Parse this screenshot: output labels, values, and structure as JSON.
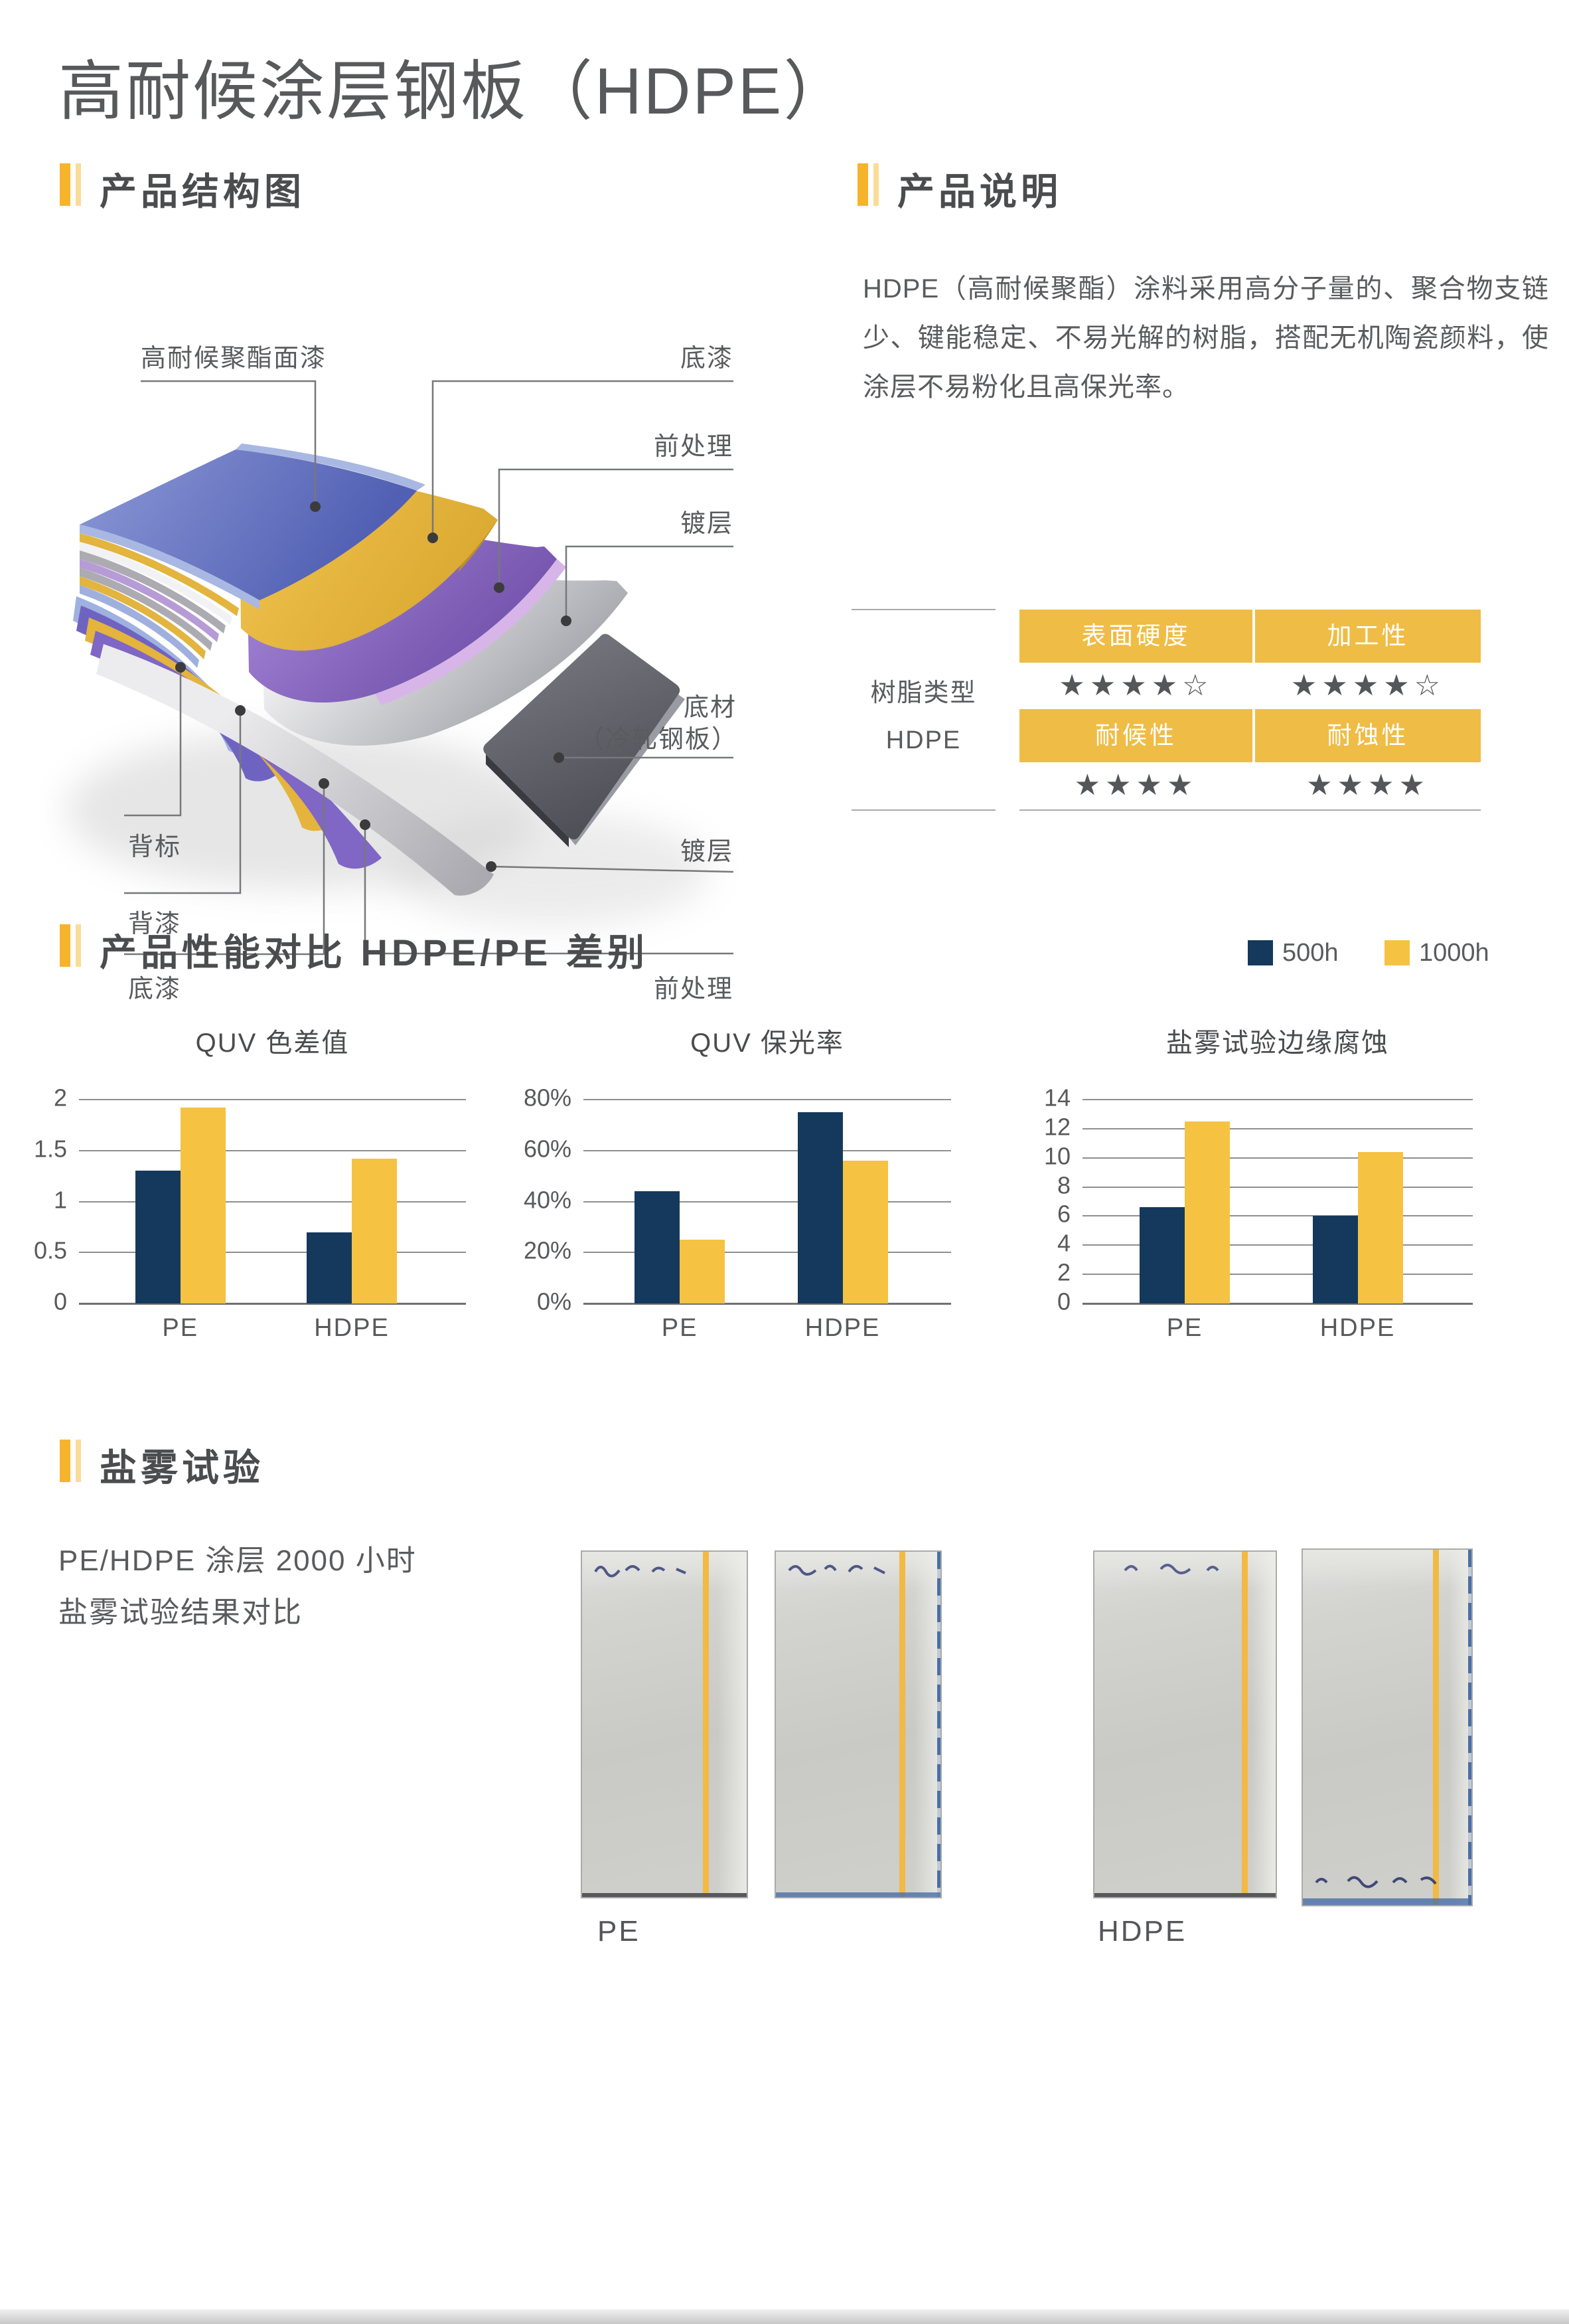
{
  "page": {
    "title": "高耐候涂层钢板（HDPE）"
  },
  "sections": {
    "structure": {
      "heading": "产品结构图"
    },
    "description": {
      "heading": "产品说明",
      "paragraph": "HDPE（高耐候聚酯）涂料采用高分子量的、聚合物支链少、键能稳定、不易光解的树脂，搭配无机陶瓷颜料，使涂层不易粉化且高保光率。"
    },
    "performance": {
      "heading": "产品性能对比 HDPE/PE 差别"
    },
    "salt_spray": {
      "heading": "盐雾试验",
      "caption_line1": "PE/HDPE 涂层 2000 小时",
      "caption_line2": "盐雾试验结果对比",
      "groups": [
        {
          "label": "PE"
        },
        {
          "label": "HDPE"
        }
      ]
    }
  },
  "structure_diagram": {
    "labels": {
      "topcoat": "高耐候聚酯面漆",
      "primer_top": "底漆",
      "pretreatment_top": "前处理",
      "plating_top": "镀层",
      "substrate_line1": "底材",
      "substrate_line2": "（冷轧钢板）",
      "plating_bottom": "镀层",
      "pretreatment_bottom": "前处理",
      "back_mark": "背标",
      "back_paint": "背漆",
      "primer_bottom": "底漆"
    }
  },
  "resin_table": {
    "row_label_line1": "树脂类型",
    "row_label_line2": "HDPE",
    "header_bg": "#EFBC45",
    "properties": [
      {
        "name": "表面硬度",
        "stars": "★★★★☆"
      },
      {
        "name": "加工性",
        "stars": "★★★★☆"
      },
      {
        "name": "耐候性",
        "stars": "★★★★"
      },
      {
        "name": "耐蚀性",
        "stars": "★★★★"
      }
    ]
  },
  "legend": {
    "items": [
      {
        "label": "500h",
        "color": "#14395C"
      },
      {
        "label": "1000h",
        "color": "#F5C242"
      }
    ]
  },
  "chart_data": [
    {
      "type": "bar",
      "title": "QUV 色差值",
      "categories": [
        "PE",
        "HDPE"
      ],
      "series": [
        {
          "name": "500h",
          "color": "#14395C",
          "values": [
            1.3,
            0.7
          ]
        },
        {
          "name": "1000h",
          "color": "#F5C242",
          "values": [
            1.92,
            1.42
          ]
        }
      ],
      "ylim": [
        0,
        2
      ],
      "ytick_values": [
        2,
        1.5,
        1,
        0.5,
        0
      ],
      "ytick_format": "plain",
      "grid": true,
      "legend_position": "top-right-shared"
    },
    {
      "type": "bar",
      "title": "QUV 保光率",
      "categories": [
        "PE",
        "HDPE"
      ],
      "series": [
        {
          "name": "500h",
          "color": "#14395C",
          "values": [
            44,
            75
          ]
        },
        {
          "name": "1000h",
          "color": "#F5C242",
          "values": [
            25,
            56
          ]
        }
      ],
      "ylim": [
        0,
        80
      ],
      "ytick_values": [
        80,
        60,
        40,
        20,
        0
      ],
      "ytick_format": "percent",
      "grid": true,
      "legend_position": "top-right-shared"
    },
    {
      "type": "bar",
      "title": "盐雾试验边缘腐蚀",
      "categories": [
        "PE",
        "HDPE"
      ],
      "series": [
        {
          "name": "500h",
          "color": "#14395C",
          "values": [
            6.6,
            6.0
          ]
        },
        {
          "name": "1000h",
          "color": "#F5C242",
          "values": [
            12.5,
            10.4
          ]
        }
      ],
      "ylim": [
        0,
        14
      ],
      "ytick_values": [
        14,
        12,
        10,
        8,
        6,
        4,
        2,
        0
      ],
      "ytick_format": "plain",
      "grid": true,
      "legend_position": "top-right-shared"
    }
  ]
}
